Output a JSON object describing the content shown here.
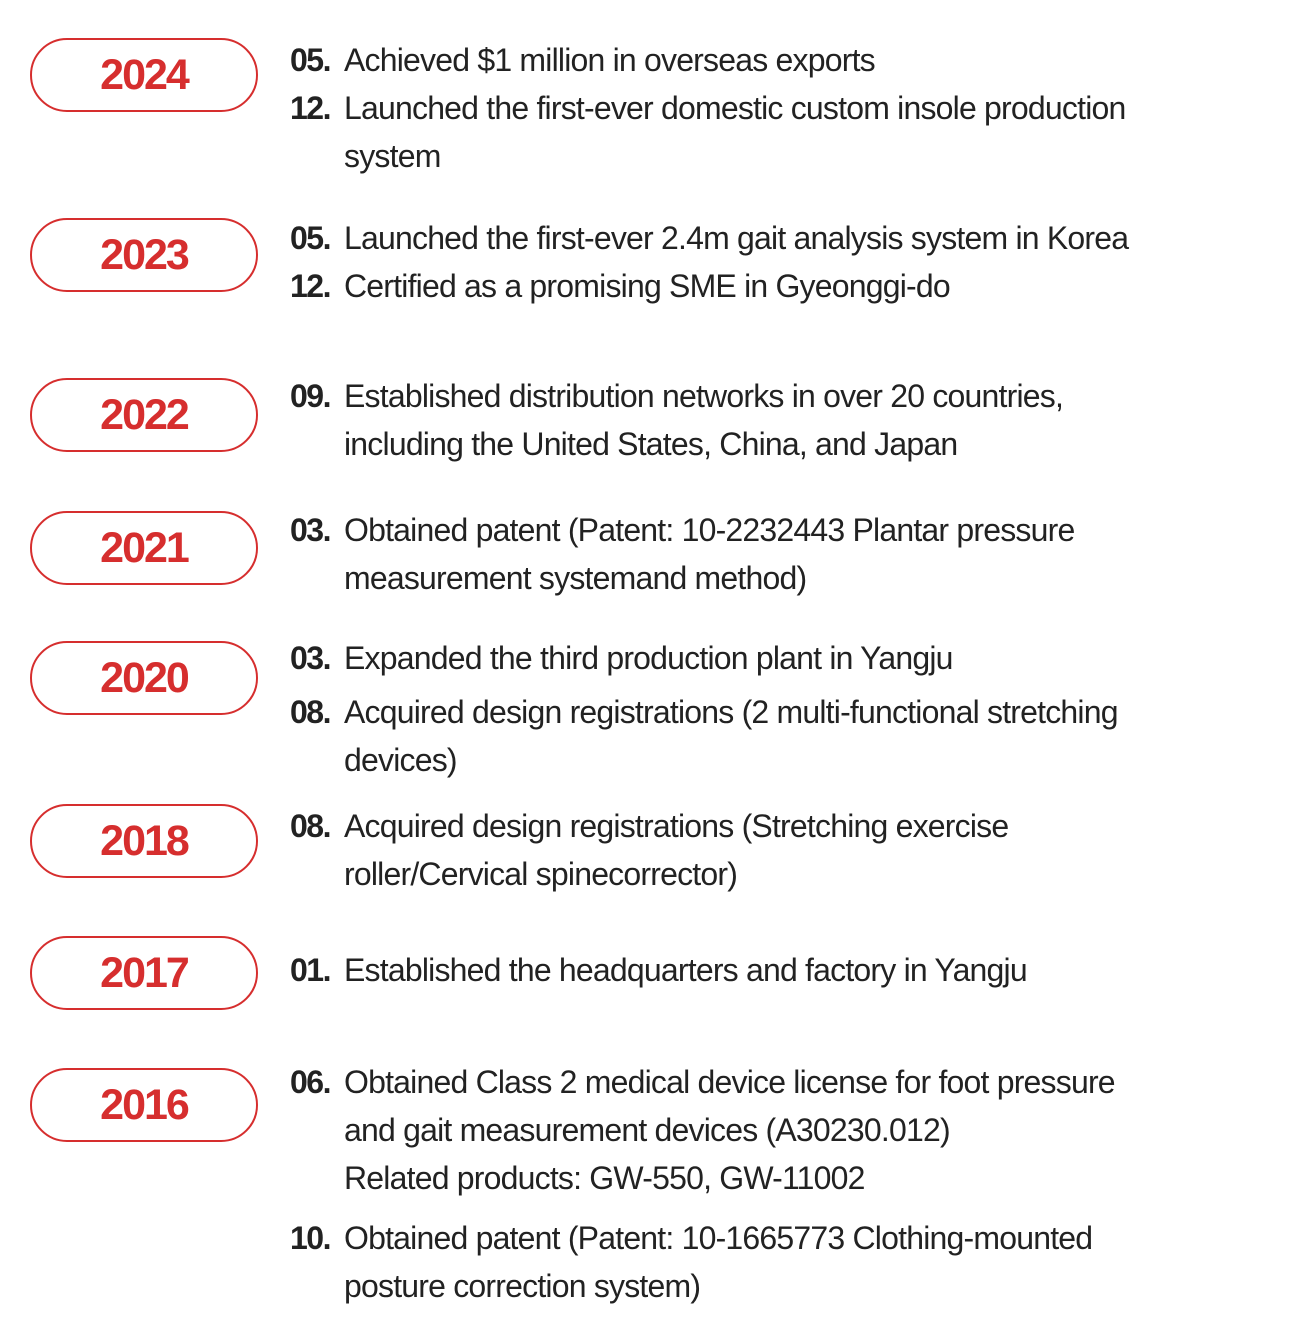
{
  "timeline": [
    {
      "year": "2024",
      "events": [
        {
          "month": "05.",
          "lines": [
            "Achieved $1 million in overseas exports"
          ]
        },
        {
          "month": "12.",
          "lines": [
            "Launched the first-ever domestic custom insole production",
            "system"
          ]
        }
      ]
    },
    {
      "year": "2023",
      "events": [
        {
          "month": "05.",
          "lines": [
            "Launched the first-ever 2.4m gait analysis system in Korea"
          ]
        },
        {
          "month": "12.",
          "lines": [
            "Certified as a promising SME in Gyeonggi-do"
          ]
        }
      ]
    },
    {
      "year": "2022",
      "events": [
        {
          "month": "09.",
          "lines": [
            "Established distribution networks in over 20 countries,",
            "including the United States, China, and Japan"
          ]
        }
      ]
    },
    {
      "year": "2021",
      "events": [
        {
          "month": "03.",
          "lines": [
            "Obtained patent (Patent: 10-2232443 Plantar pressure",
            "measurement systemand method)"
          ]
        }
      ]
    },
    {
      "year": "2020",
      "events": [
        {
          "month": "03.",
          "lines": [
            "Expanded the third production plant in Yangju"
          ]
        },
        {
          "month": "08.",
          "lines": [
            "Acquired design registrations (2 multi-functional stretching",
            "devices)"
          ]
        }
      ]
    },
    {
      "year": "2018",
      "events": [
        {
          "month": "08.",
          "lines": [
            "Acquired design registrations (Stretching exercise",
            "roller/Cervical spinecorrector)"
          ]
        }
      ]
    },
    {
      "year": "2017",
      "events": [
        {
          "month": "01.",
          "lines": [
            "Established the headquarters and factory in Yangju"
          ]
        }
      ]
    },
    {
      "year": "2016",
      "events": [
        {
          "month": "06.",
          "lines": [
            "Obtained Class 2 medical device license for foot pressure",
            "and gait measurement devices (A30230.012)",
            "Related products: GW-550, GW-11002"
          ]
        },
        {
          "month": "10.",
          "lines": [
            "Obtained patent (Patent: 10-1665773 Clothing-mounted",
            "posture correction system)"
          ]
        }
      ]
    }
  ],
  "colors": {
    "accent": "#d62e2e",
    "text": "#222222",
    "background": "#ffffff"
  }
}
